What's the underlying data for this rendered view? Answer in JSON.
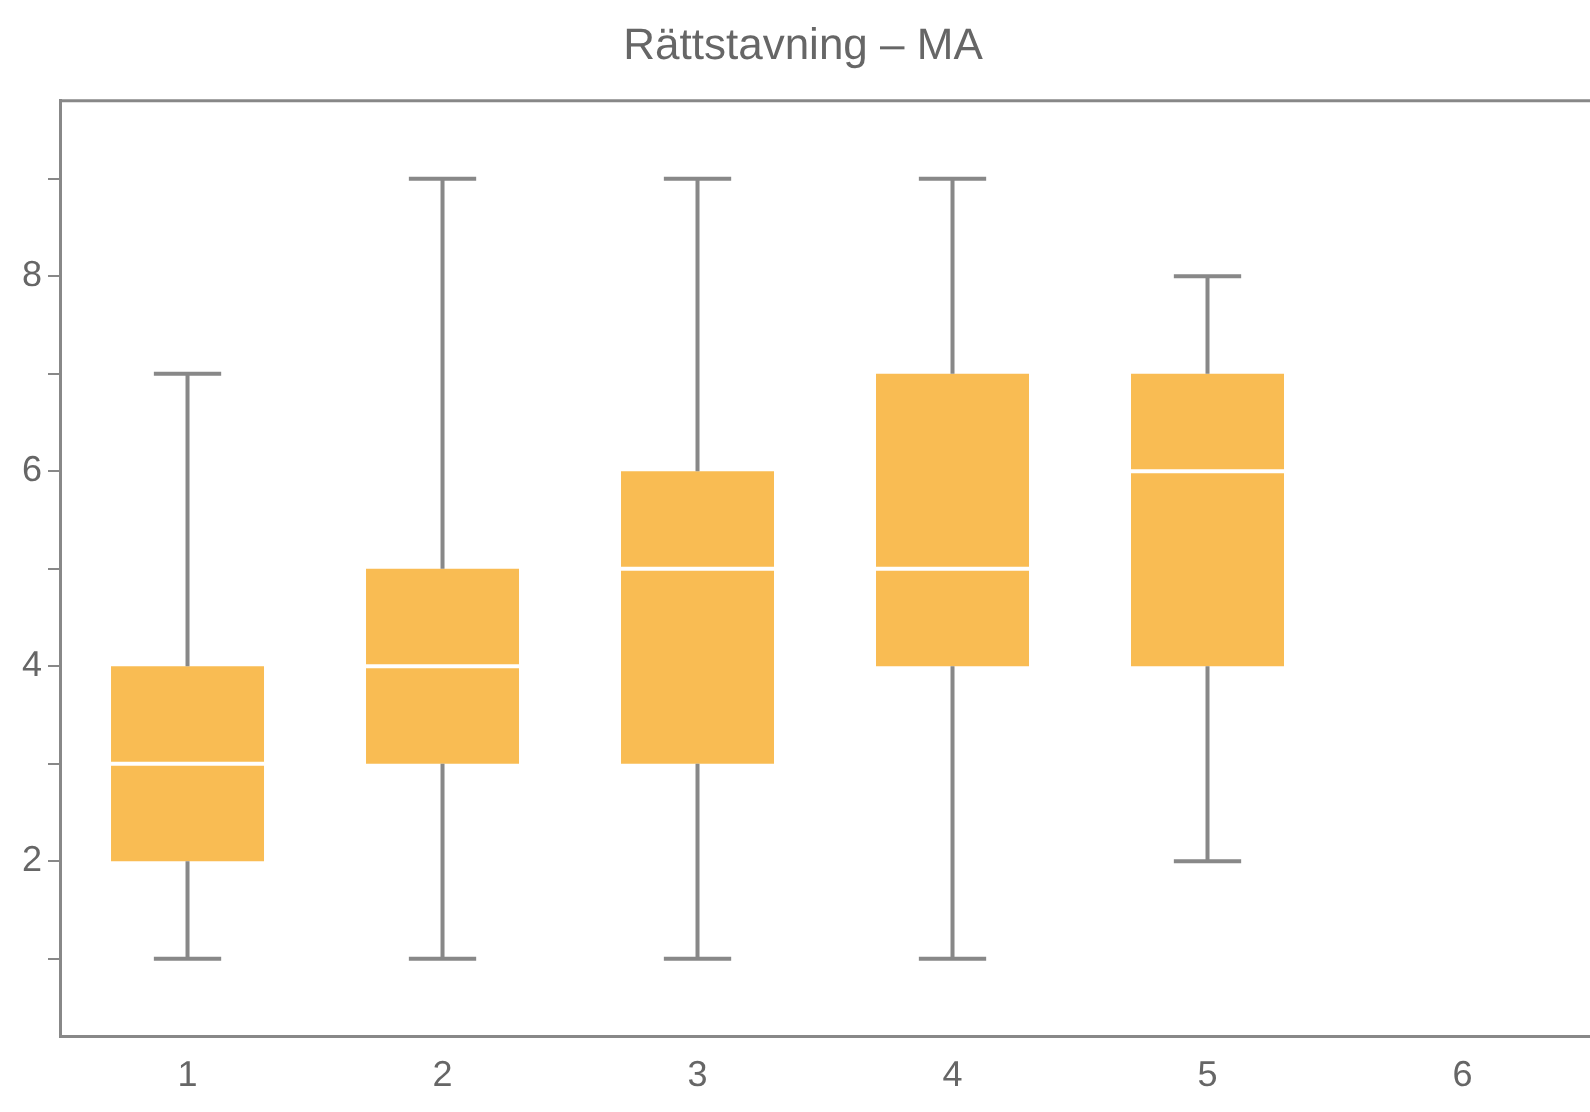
{
  "chart_data": {
    "type": "box",
    "title": "Rättstavning – MA",
    "categories": [
      "1",
      "2",
      "3",
      "4",
      "5",
      "6"
    ],
    "boxes": [
      {
        "low": 1,
        "q1": 2,
        "median": 3,
        "q3": 4,
        "high": 7
      },
      {
        "low": 1,
        "q1": 3,
        "median": 4,
        "q3": 5,
        "high": 9
      },
      {
        "low": 1,
        "q1": 3,
        "median": 5,
        "q3": 6,
        "high": 9
      },
      {
        "low": 1,
        "q1": 4,
        "median": 5,
        "q3": 7,
        "high": 9
      },
      {
        "low": 2,
        "q1": 4,
        "median": 6,
        "q3": 7,
        "high": 8
      },
      null
    ],
    "color": "#f9bc53",
    "ylim": [
      0.2,
      9.8
    ],
    "yticks": [
      {
        "value": 1,
        "label": null
      },
      2,
      {
        "value": 3,
        "label": null
      },
      4,
      {
        "value": 5,
        "label": null
      },
      6,
      {
        "value": 7,
        "label": null
      },
      8,
      {
        "value": 9,
        "label": null
      }
    ],
    "grid": false,
    "legend": false
  }
}
